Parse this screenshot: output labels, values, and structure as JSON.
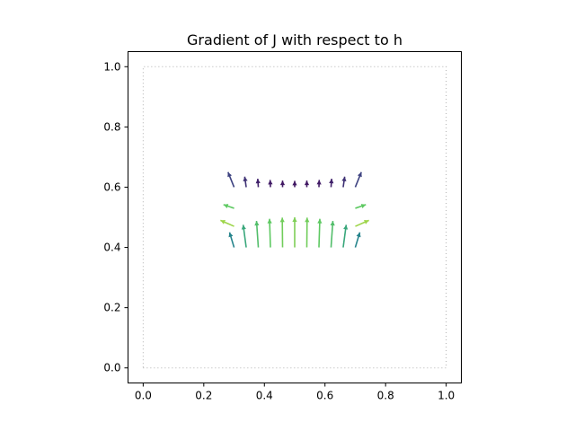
{
  "chart_data": {
    "type": "quiver",
    "title": "Gradient of J with respect to h",
    "xlabel": "",
    "ylabel": "",
    "xlim": [
      -0.05,
      1.05
    ],
    "ylim": [
      -0.05,
      1.05
    ],
    "x_ticks": [
      0.0,
      0.2,
      0.4,
      0.6,
      0.8,
      1.0
    ],
    "y_ticks": [
      0.0,
      0.2,
      0.4,
      0.6,
      0.8,
      1.0
    ],
    "x_tick_labels": [
      "0.0",
      "0.2",
      "0.4",
      "0.6",
      "0.8",
      "1.0"
    ],
    "y_tick_labels": [
      "0.0",
      "0.2",
      "0.4",
      "0.6",
      "0.8",
      "1.0"
    ],
    "grid": false,
    "colormap": "viridis",
    "boundary": {
      "style": "dotted",
      "color": "#b0b0b0",
      "x": [
        0,
        1,
        1,
        0,
        0
      ],
      "y": [
        0,
        0,
        1,
        1,
        0
      ]
    },
    "arrows": [
      {
        "x": 0.3,
        "y": 0.6,
        "u": -0.02,
        "v": 0.05,
        "c": 0.2
      },
      {
        "x": 0.34,
        "y": 0.6,
        "u": -0.005,
        "v": 0.035,
        "c": 0.15
      },
      {
        "x": 0.38,
        "y": 0.6,
        "u": -0.002,
        "v": 0.028,
        "c": 0.1
      },
      {
        "x": 0.42,
        "y": 0.6,
        "u": -0.001,
        "v": 0.024,
        "c": 0.08
      },
      {
        "x": 0.46,
        "y": 0.6,
        "u": 0.0,
        "v": 0.022,
        "c": 0.07
      },
      {
        "x": 0.5,
        "y": 0.6,
        "u": 0.0,
        "v": 0.021,
        "c": 0.07
      },
      {
        "x": 0.54,
        "y": 0.6,
        "u": 0.0,
        "v": 0.022,
        "c": 0.07
      },
      {
        "x": 0.58,
        "y": 0.6,
        "u": 0.001,
        "v": 0.024,
        "c": 0.08
      },
      {
        "x": 0.62,
        "y": 0.6,
        "u": 0.002,
        "v": 0.028,
        "c": 0.1
      },
      {
        "x": 0.66,
        "y": 0.6,
        "u": 0.005,
        "v": 0.035,
        "c": 0.15
      },
      {
        "x": 0.7,
        "y": 0.6,
        "u": 0.02,
        "v": 0.05,
        "c": 0.2
      },
      {
        "x": 0.3,
        "y": 0.53,
        "u": -0.035,
        "v": 0.012,
        "c": 0.75
      },
      {
        "x": 0.3,
        "y": 0.47,
        "u": -0.045,
        "v": 0.02,
        "c": 0.85
      },
      {
        "x": 0.7,
        "y": 0.53,
        "u": 0.035,
        "v": 0.012,
        "c": 0.75
      },
      {
        "x": 0.7,
        "y": 0.47,
        "u": 0.045,
        "v": 0.02,
        "c": 0.85
      },
      {
        "x": 0.3,
        "y": 0.4,
        "u": -0.015,
        "v": 0.05,
        "c": 0.45
      },
      {
        "x": 0.34,
        "y": 0.4,
        "u": -0.01,
        "v": 0.075,
        "c": 0.6
      },
      {
        "x": 0.38,
        "y": 0.4,
        "u": -0.006,
        "v": 0.088,
        "c": 0.7
      },
      {
        "x": 0.42,
        "y": 0.4,
        "u": -0.003,
        "v": 0.095,
        "c": 0.75
      },
      {
        "x": 0.46,
        "y": 0.4,
        "u": -0.001,
        "v": 0.099,
        "c": 0.78
      },
      {
        "x": 0.5,
        "y": 0.4,
        "u": 0.0,
        "v": 0.1,
        "c": 0.8
      },
      {
        "x": 0.54,
        "y": 0.4,
        "u": 0.001,
        "v": 0.099,
        "c": 0.78
      },
      {
        "x": 0.58,
        "y": 0.4,
        "u": 0.003,
        "v": 0.095,
        "c": 0.75
      },
      {
        "x": 0.62,
        "y": 0.4,
        "u": 0.006,
        "v": 0.088,
        "c": 0.7
      },
      {
        "x": 0.66,
        "y": 0.4,
        "u": 0.01,
        "v": 0.075,
        "c": 0.6
      },
      {
        "x": 0.7,
        "y": 0.4,
        "u": 0.015,
        "v": 0.05,
        "c": 0.45
      }
    ]
  }
}
